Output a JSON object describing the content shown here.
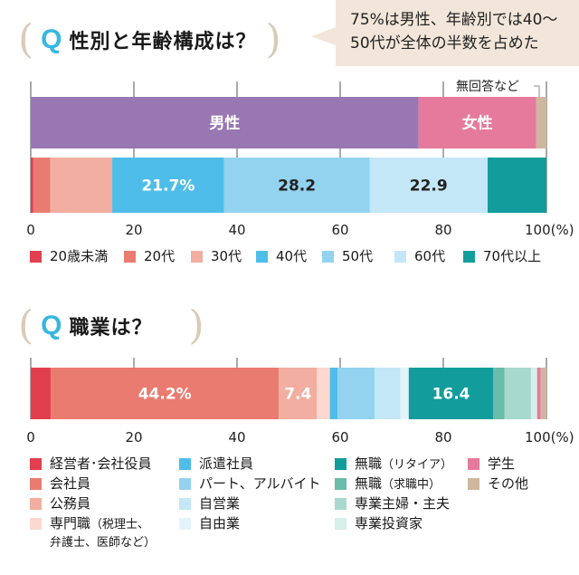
{
  "section1": {
    "q": "Q",
    "title": "性別と年齢構成は？"
  },
  "callout": {
    "line1": "75%は男性、年齢別では40～",
    "line2": "50代が全体の半数を占めた"
  },
  "section2": {
    "q": "Q",
    "title": "職業は？"
  },
  "chart_data": [
    {
      "type": "bar",
      "orientation": "horizontal-stacked",
      "title": "性別",
      "xlim": [
        0,
        100
      ],
      "xticks": [
        "0",
        "20",
        "40",
        "60",
        "80",
        "100(%)"
      ],
      "annotation": "無回答など",
      "series": [
        {
          "name": "男性",
          "value": 75.2,
          "color": "#9877b3",
          "label": "男性"
        },
        {
          "name": "女性",
          "value": 22.8,
          "color": "#e57a9c",
          "label": "女性"
        },
        {
          "name": "無回答など",
          "value": 2.0,
          "color": "#cfb79f",
          "label": ""
        }
      ]
    },
    {
      "type": "bar",
      "orientation": "horizontal-stacked",
      "title": "年齢",
      "xlim": [
        0,
        100
      ],
      "series": [
        {
          "name": "20歳未満",
          "value": 0.5,
          "color": "#e23f4e",
          "label": ""
        },
        {
          "name": "20代",
          "value": 3.3,
          "color": "#ea7b70",
          "label": ""
        },
        {
          "name": "30代",
          "value": 12.0,
          "color": "#f2aea0",
          "label": ""
        },
        {
          "name": "40代",
          "value": 21.7,
          "color": "#4fbde9",
          "label": "21.7%"
        },
        {
          "name": "50代",
          "value": 28.2,
          "color": "#93d3ef",
          "label": "28.2"
        },
        {
          "name": "60代",
          "value": 22.9,
          "color": "#c4e7f7",
          "label": "22.9"
        },
        {
          "name": "70代以上",
          "value": 11.4,
          "color": "#129c9b",
          "label": ""
        }
      ]
    },
    {
      "type": "bar",
      "orientation": "horizontal-stacked",
      "title": "職業",
      "xlim": [
        0,
        100
      ],
      "xticks": [
        "0",
        "20",
        "40",
        "60",
        "80",
        "100(%)"
      ],
      "series": [
        {
          "name": "経営者･会社役員",
          "value": 3.9,
          "color": "#e23f4e",
          "label": ""
        },
        {
          "name": "会社員",
          "value": 44.2,
          "color": "#ea7b70",
          "label": "44.2%"
        },
        {
          "name": "公務員",
          "value": 7.4,
          "color": "#f2aea0",
          "label": "7.4"
        },
        {
          "name": "専門職",
          "value": 2.5,
          "color": "#fbd9d0",
          "label": ""
        },
        {
          "name": "派遣社員",
          "value": 1.5,
          "color": "#4fbde9",
          "label": ""
        },
        {
          "name": "パート、アルバイト",
          "value": 7.2,
          "color": "#93d3ef",
          "label": ""
        },
        {
          "name": "自営業",
          "value": 5.0,
          "color": "#c4e7f7",
          "label": ""
        },
        {
          "name": "自由業",
          "value": 1.6,
          "color": "#e3f3fb",
          "label": ""
        },
        {
          "name": "無職（リタイア）",
          "value": 16.4,
          "color": "#129c9b",
          "label": "16.4"
        },
        {
          "name": "無職（求職中）",
          "value": 2.2,
          "color": "#6cbcaa",
          "label": ""
        },
        {
          "name": "専業主婦・主夫",
          "value": 5.1,
          "color": "#a7d9cf",
          "label": ""
        },
        {
          "name": "専業投資家",
          "value": 1.2,
          "color": "#d6efea",
          "label": ""
        },
        {
          "name": "学生",
          "value": 0.7,
          "color": "#e57a9c",
          "label": ""
        },
        {
          "name": "その他",
          "value": 1.1,
          "color": "#cfb79f",
          "label": ""
        }
      ]
    }
  ],
  "legend1": [
    {
      "name": "20歳未満",
      "color": "#e23f4e"
    },
    {
      "name": "20代",
      "color": "#ea7b70"
    },
    {
      "name": "30代",
      "color": "#f2aea0"
    },
    {
      "name": "40代",
      "color": "#4fbde9"
    },
    {
      "name": "50代",
      "color": "#93d3ef"
    },
    {
      "name": "60代",
      "color": "#c4e7f7"
    },
    {
      "name": "70代以上",
      "color": "#129c9b"
    }
  ],
  "legend2": [
    {
      "name": "経営者･会社役員",
      "color": "#e23f4e"
    },
    {
      "name": "会社員",
      "color": "#ea7b70"
    },
    {
      "name": "公務員",
      "color": "#f2aea0"
    },
    {
      "name": "専門職",
      "sub": "（税理士、",
      "sub2": "弁護士、医師など）",
      "color": "#fbd9d0"
    },
    {
      "name": "派遣社員",
      "color": "#4fbde9"
    },
    {
      "name": "パート、アルバイト",
      "color": "#93d3ef"
    },
    {
      "name": "自営業",
      "color": "#c4e7f7"
    },
    {
      "name": "自由業",
      "color": "#e3f3fb"
    },
    {
      "name": "無職",
      "sub": "（リタイア）",
      "color": "#129c9b"
    },
    {
      "name": "無職",
      "sub": "（求職中）",
      "color": "#6cbcaa"
    },
    {
      "name": "専業主婦・主夫",
      "color": "#a7d9cf"
    },
    {
      "name": "専業投資家",
      "color": "#d6efea"
    },
    {
      "name": "学生",
      "color": "#e57a9c"
    },
    {
      "name": "その他",
      "color": "#cfb79f"
    }
  ]
}
